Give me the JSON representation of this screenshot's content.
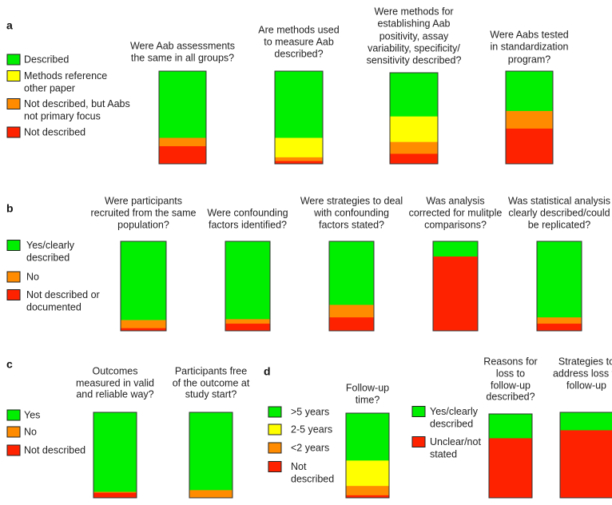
{
  "colors": {
    "green": "#00ee00",
    "yellow": "#ffff00",
    "orange": "#ff8c00",
    "red": "#ff2200"
  },
  "chart_data": [
    {
      "type": "bar",
      "stacked": true,
      "panel": "a",
      "unit": "percent",
      "legend": [
        {
          "label": [
            "Described"
          ],
          "color": "green"
        },
        {
          "label": [
            "Methods reference",
            "other paper"
          ],
          "color": "yellow"
        },
        {
          "label": [
            "Not described, but Aabs",
            "not primary focus"
          ],
          "color": "orange"
        },
        {
          "label": [
            "Not described"
          ],
          "color": "red"
        }
      ],
      "bars": [
        {
          "question": [
            "Were Aab assessments",
            "the same in all groups?"
          ],
          "values": [
            72,
            0,
            9,
            19
          ]
        },
        {
          "question": [
            "Are methods used",
            "to measure Aab",
            "described?"
          ],
          "values": [
            72,
            21,
            4,
            3
          ]
        },
        {
          "question": [
            "Were methods for",
            "establishing Aab",
            "positivity, assay",
            "variability, specificity/",
            "sensitivity described?"
          ],
          "values": [
            48,
            28,
            13,
            11
          ]
        },
        {
          "question": [
            "Were Aabs tested",
            "in standardization",
            "program?"
          ],
          "values": [
            43,
            0,
            19,
            38
          ]
        }
      ]
    },
    {
      "type": "bar",
      "stacked": true,
      "panel": "b",
      "unit": "percent",
      "legend": [
        {
          "label": [
            "Yes/clearly",
            "described"
          ],
          "color": "green"
        },
        {
          "label": [
            "No"
          ],
          "color": "orange"
        },
        {
          "label": [
            "Not described or",
            "documented"
          ],
          "color": "red"
        }
      ],
      "bars": [
        {
          "question": [
            "Were participants",
            "recruited from the same",
            "population?"
          ],
          "values": [
            88,
            9,
            3
          ]
        },
        {
          "question": [
            "Were confounding",
            "factors identified?"
          ],
          "values": [
            87,
            5,
            8
          ]
        },
        {
          "question": [
            "Were strategies to deal",
            "with confounding",
            "factors stated?"
          ],
          "values": [
            71,
            14,
            15
          ]
        },
        {
          "question": [
            "Was analysis",
            "corrected for mulitple",
            "comparisons?"
          ],
          "values": [
            17,
            0,
            83
          ]
        },
        {
          "question": [
            "Was statistical analysis",
            "clearly described/could",
            "be replicated?"
          ],
          "values": [
            85,
            7,
            8
          ]
        }
      ]
    },
    {
      "type": "bar",
      "stacked": true,
      "panel": "c",
      "unit": "percent",
      "legend": [
        {
          "label": [
            "Yes"
          ],
          "color": "green"
        },
        {
          "label": [
            "No"
          ],
          "color": "orange"
        },
        {
          "label": [
            "Not described"
          ],
          "color": "red"
        }
      ],
      "bars": [
        {
          "question": [
            "Outcomes",
            "measured in valid",
            "and reliable way?"
          ],
          "values": [
            93,
            1,
            6
          ]
        },
        {
          "question": [
            "Participants free",
            "of the outcome at",
            "study start?"
          ],
          "values": [
            91,
            9,
            0
          ]
        }
      ]
    },
    {
      "type": "bar",
      "stacked": true,
      "panel": "d",
      "unit": "percent",
      "legend": [
        {
          "label": [
            ">5 years"
          ],
          "color": "green"
        },
        {
          "label": [
            "2-5 years"
          ],
          "color": "yellow"
        },
        {
          "label": [
            "<2 years"
          ],
          "color": "orange"
        },
        {
          "label": [
            "Not",
            "described"
          ],
          "color": "red"
        }
      ],
      "bars": [
        {
          "question": [
            "Follow-up",
            "time?"
          ],
          "values": [
            56,
            30,
            11,
            3
          ]
        }
      ]
    },
    {
      "type": "bar",
      "stacked": true,
      "panel": "",
      "unit": "percent",
      "legend": [
        {
          "label": [
            "Yes/clearly",
            "described"
          ],
          "color": "green"
        },
        {
          "label": [
            "Unclear/not",
            "stated"
          ],
          "color": "red"
        }
      ],
      "bars": [
        {
          "question": [
            "Reasons for",
            "loss to",
            "follow-up",
            "described?"
          ],
          "values": [
            29,
            71
          ]
        },
        {
          "question": [
            "Strategies to",
            "address loss to",
            "follow-up"
          ],
          "values": [
            21,
            79
          ]
        }
      ]
    }
  ]
}
